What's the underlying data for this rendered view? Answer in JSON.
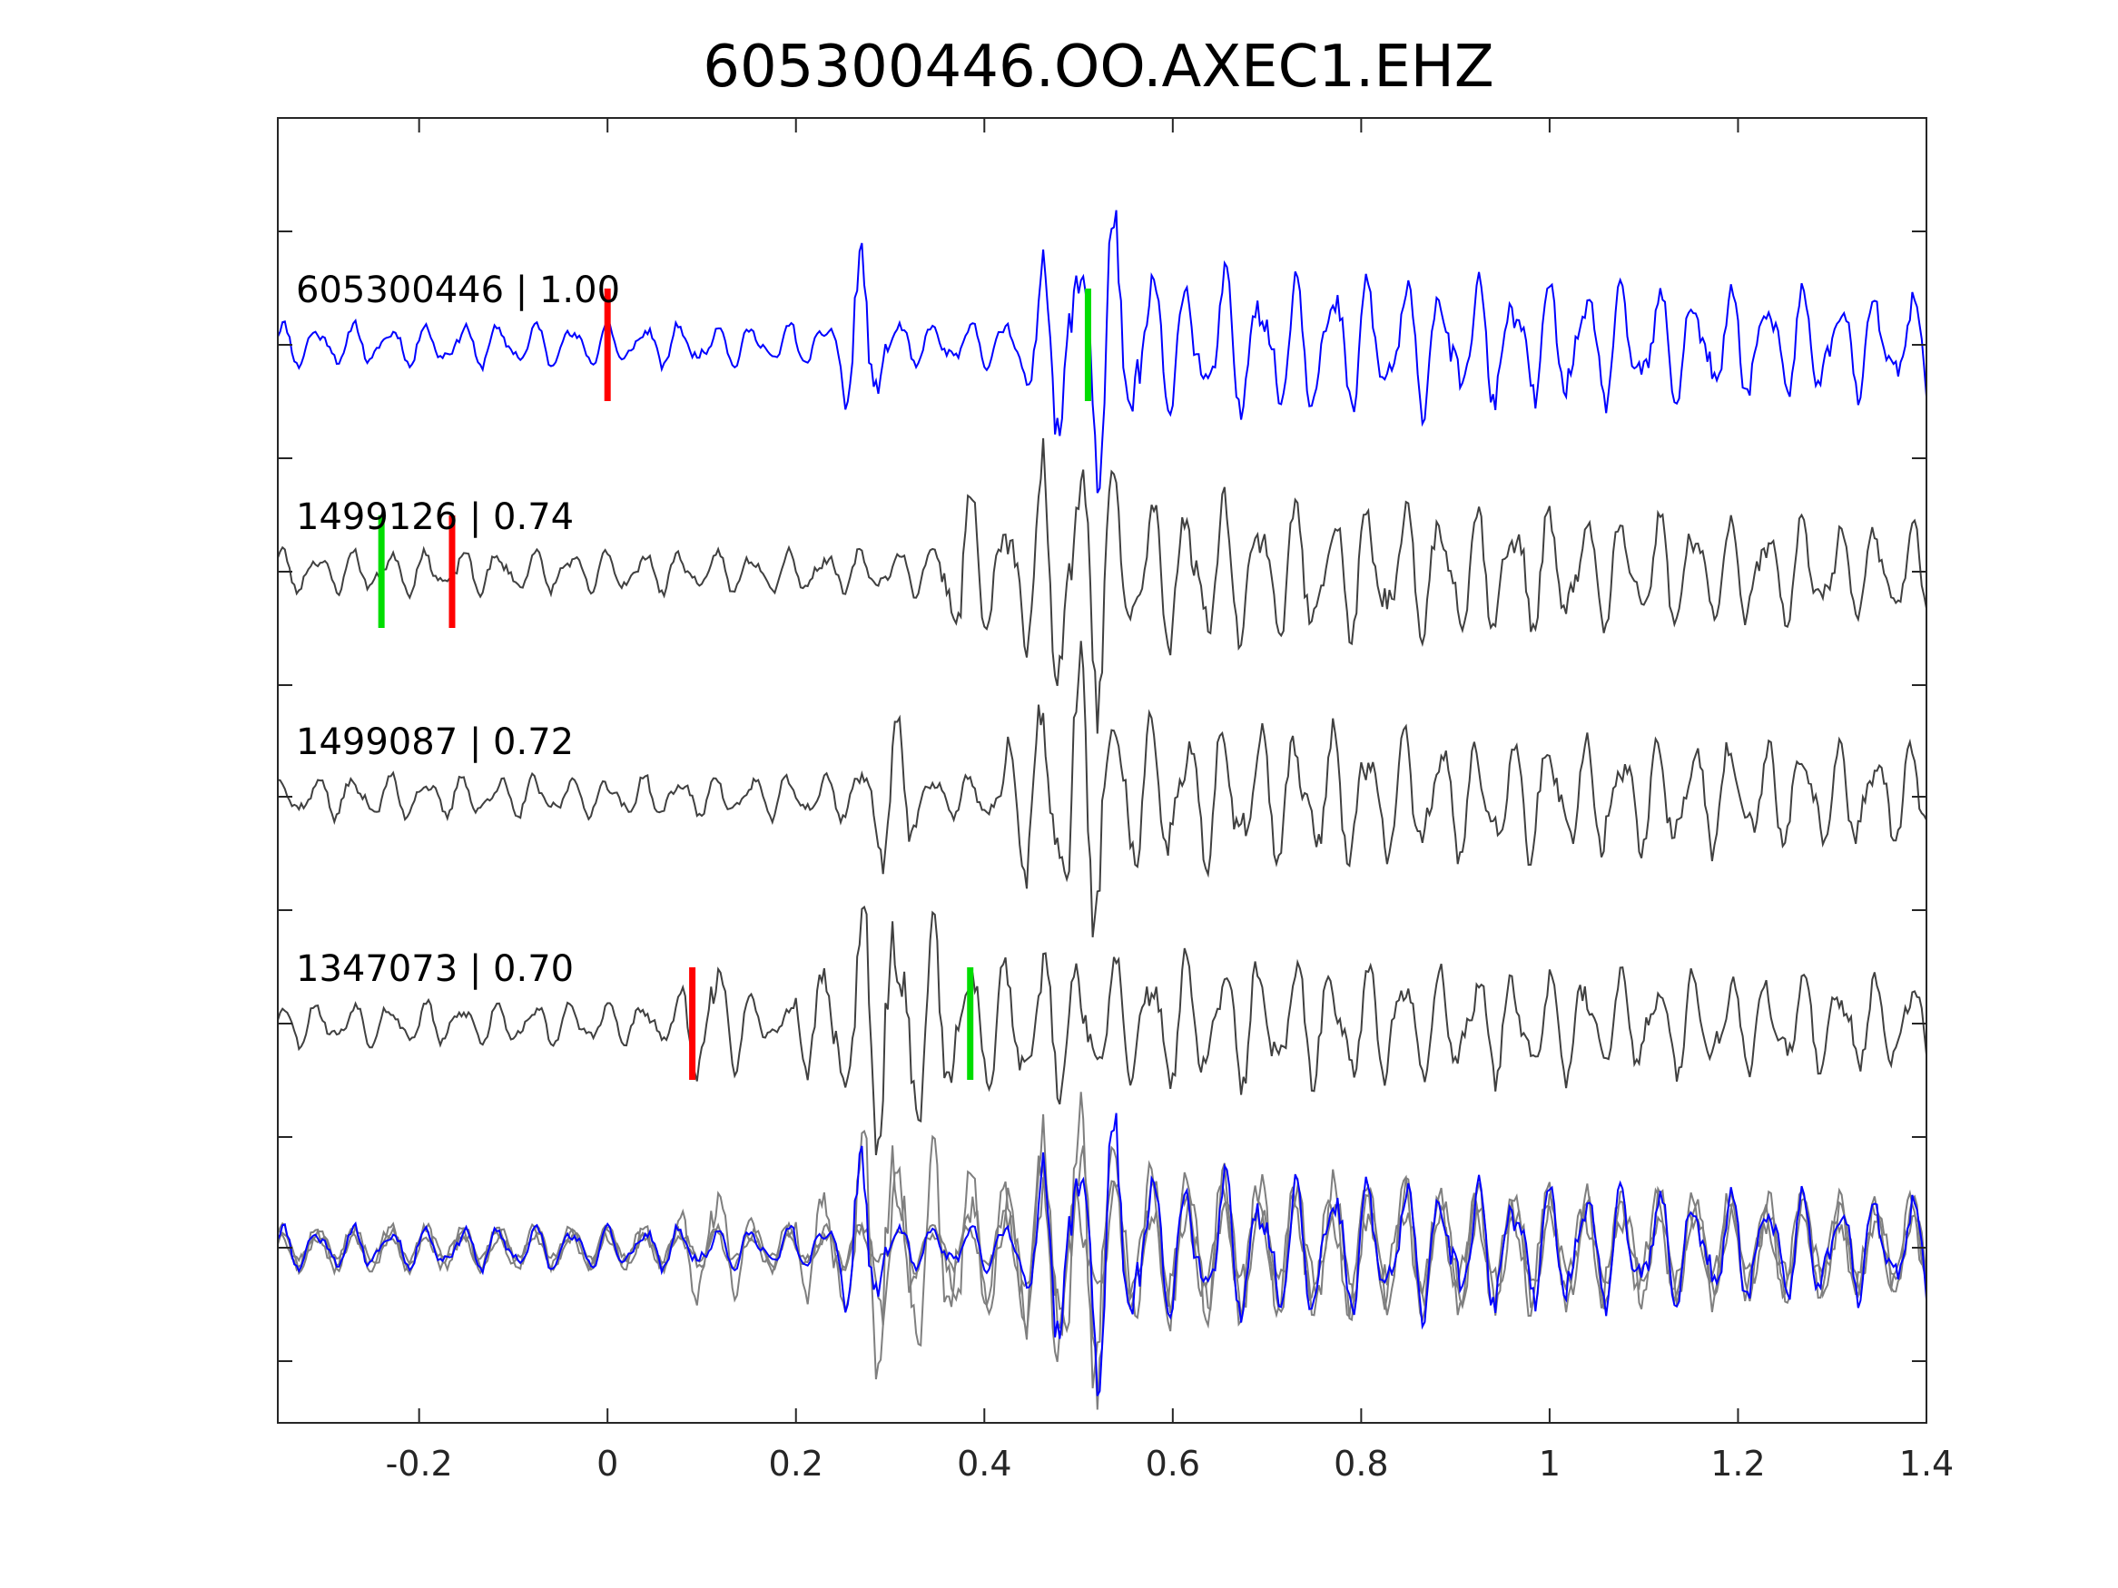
{
  "chart_data": {
    "type": "line",
    "title": "605300446.OO.AXEC1.EHZ",
    "xlabel": "",
    "ylabel": "",
    "xlim": [
      -0.35,
      1.4
    ],
    "xticks": [
      -0.2,
      0,
      0.2,
      0.4,
      0.6,
      0.8,
      1,
      1.2,
      1.4
    ],
    "xtick_labels": [
      "-0.2",
      "0",
      "0.2",
      "0.4",
      "0.6",
      "0.8",
      "1",
      "1.2",
      "1.4"
    ],
    "grid": false,
    "colors": {
      "template": "#0000ff",
      "match": "#404040",
      "overlay": "#7f7f7f",
      "p_pick": "#ff0000",
      "s_pick": "#00dd00"
    },
    "traces": [
      {
        "name": "605300446",
        "cc": "1.00",
        "label": "605300446 | 1.00",
        "color": "#0000ff",
        "p_pick": 0.0,
        "s_pick": 0.51,
        "seed": 11,
        "onset": 0.27,
        "burst": 0.52
      },
      {
        "name": "1499126",
        "cc": "0.74",
        "label": "1499126 | 0.74",
        "color": "#404040",
        "p_pick": -0.165,
        "s_pick": -0.24,
        "seed": 23,
        "onset": 0.38,
        "burst": 0.5
      },
      {
        "name": "1499087",
        "cc": "0.72",
        "label": "1499087 | 0.72",
        "color": "#404040",
        "p_pick": null,
        "s_pick": null,
        "seed": 37,
        "onset": 0.3,
        "burst": 0.5
      },
      {
        "name": "1347073",
        "cc": "0.70",
        "label": "1347073 | 0.70",
        "color": "#404040",
        "p_pick": 0.09,
        "s_pick": 0.385,
        "seed": 53,
        "onset": 0.11,
        "burst": 0.3
      }
    ],
    "overlay": {
      "description_free": true
    }
  }
}
